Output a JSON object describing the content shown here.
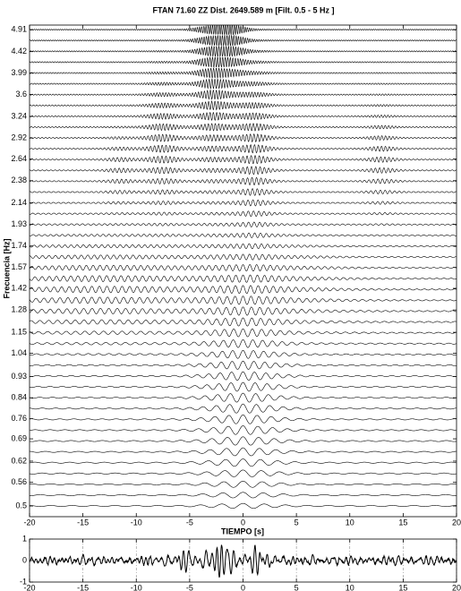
{
  "chart_data": [
    {
      "type": "wiggle",
      "title": "FTAN 71.60 ZZ  Dist. 2649.589 m    [Filt. 0.5 - 5 Hz ]",
      "x_label": "TIEMPO [s]",
      "y_label": "Frecuencia [Hz]",
      "xlim": [
        -20,
        20
      ],
      "xticks": [
        -20,
        -15,
        -10,
        -5,
        0,
        5,
        10,
        15,
        20
      ],
      "ylim": [
        0.475,
        5.02
      ],
      "log_y": true,
      "yticks": [
        4.91,
        4.42,
        3.99,
        3.6,
        3.24,
        2.92,
        2.64,
        2.38,
        2.14,
        1.93,
        1.74,
        1.57,
        1.42,
        1.28,
        1.15,
        1.04,
        0.93,
        0.84,
        0.76,
        0.69,
        0.62,
        0.56,
        0.5
      ],
      "grid": false,
      "color": "#000000"
    },
    {
      "type": "trace",
      "xlim": [
        -20,
        20
      ],
      "xticks": [
        -20,
        -15,
        -10,
        -5,
        0,
        5,
        10,
        15,
        20
      ],
      "ylim": [
        -1,
        1
      ],
      "yticks": [
        -1,
        0,
        1
      ],
      "grid": true,
      "color": "#000000"
    }
  ]
}
